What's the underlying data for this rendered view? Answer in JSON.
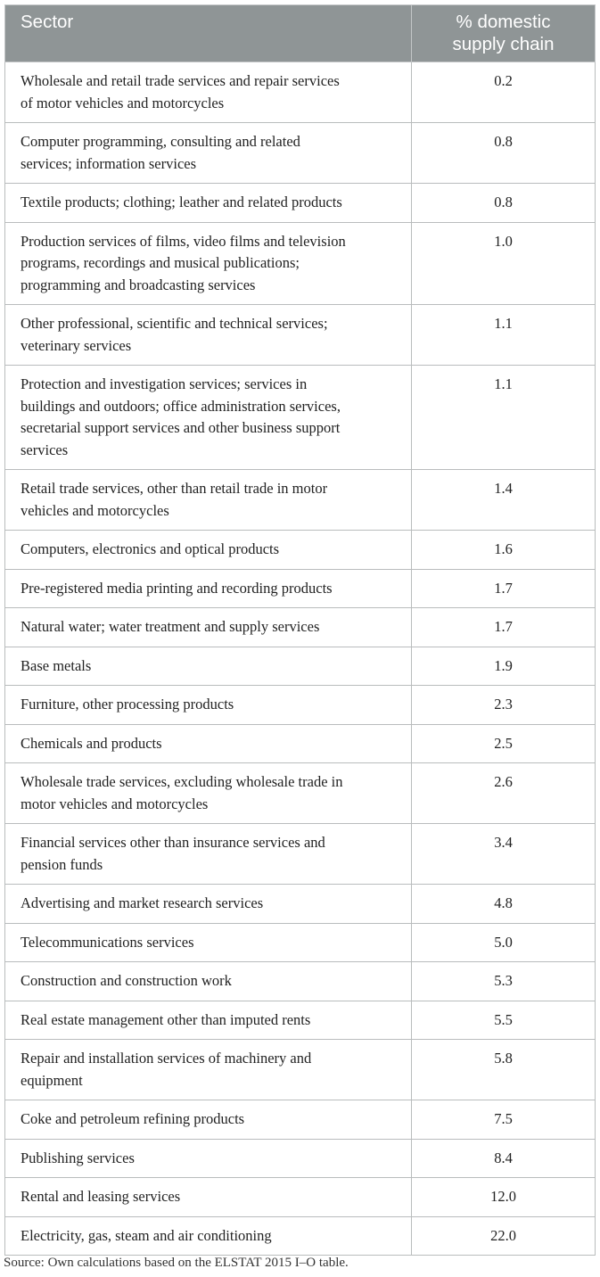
{
  "table": {
    "headers": {
      "sector": "Sector",
      "value": "% domestic\nsupply chain"
    },
    "rows": [
      {
        "sector": "Wholesale and retail trade services and repair services\nof motor vehicles and motorcycles",
        "value": "0.2"
      },
      {
        "sector": "Computer programming, consulting and related\nservices; information services",
        "value": "0.8"
      },
      {
        "sector": "Textile products; clothing; leather and related products",
        "value": "0.8"
      },
      {
        "sector": "Production services of films, video films and television\nprograms, recordings and musical publications;\nprogramming and broadcasting services",
        "value": "1.0"
      },
      {
        "sector": "Other professional, scientific and technical services;\nveterinary services",
        "value": "1.1"
      },
      {
        "sector": "Protection and investigation services; services in\nbuildings and outdoors; office administration services,\nsecretarial support services and other business support\nservices",
        "value": "1.1"
      },
      {
        "sector": "Retail trade services, other than retail trade in motor\nvehicles and motorcycles",
        "value": "1.4"
      },
      {
        "sector": "Computers, electronics and optical products",
        "value": "1.6"
      },
      {
        "sector": "Pre-registered media printing and recording products",
        "value": "1.7"
      },
      {
        "sector": "Natural water; water treatment and supply services",
        "value": "1.7"
      },
      {
        "sector": "Base metals",
        "value": "1.9"
      },
      {
        "sector": "Furniture, other processing products",
        "value": "2.3"
      },
      {
        "sector": "Chemicals and products",
        "value": "2.5"
      },
      {
        "sector": "Wholesale trade services, excluding wholesale trade in\nmotor vehicles and motorcycles",
        "value": "2.6"
      },
      {
        "sector": "Financial services other than insurance services and\npension funds",
        "value": "3.4"
      },
      {
        "sector": "Advertising and market research services",
        "value": "4.8"
      },
      {
        "sector": "Telecommunications services",
        "value": "5.0"
      },
      {
        "sector": "Construction and construction work",
        "value": "5.3"
      },
      {
        "sector": "Real estate management other than imputed rents",
        "value": "5.5"
      },
      {
        "sector": "Repair and installation services of machinery and\nequipment",
        "value": "5.8"
      },
      {
        "sector": "Coke and petroleum refining products",
        "value": "7.5"
      },
      {
        "sector": "Publishing services",
        "value": "8.4"
      },
      {
        "sector": "Rental and leasing services",
        "value": "12.0"
      },
      {
        "sector": "Electricity, gas, steam and air conditioning",
        "value": "22.0"
      }
    ]
  },
  "source": "Source: Own calculations based on the ELSTAT 2015 I–O table.",
  "colors": {
    "header_bg": "#8f9596",
    "header_text": "#ffffff",
    "border": "#b9bcbd"
  }
}
